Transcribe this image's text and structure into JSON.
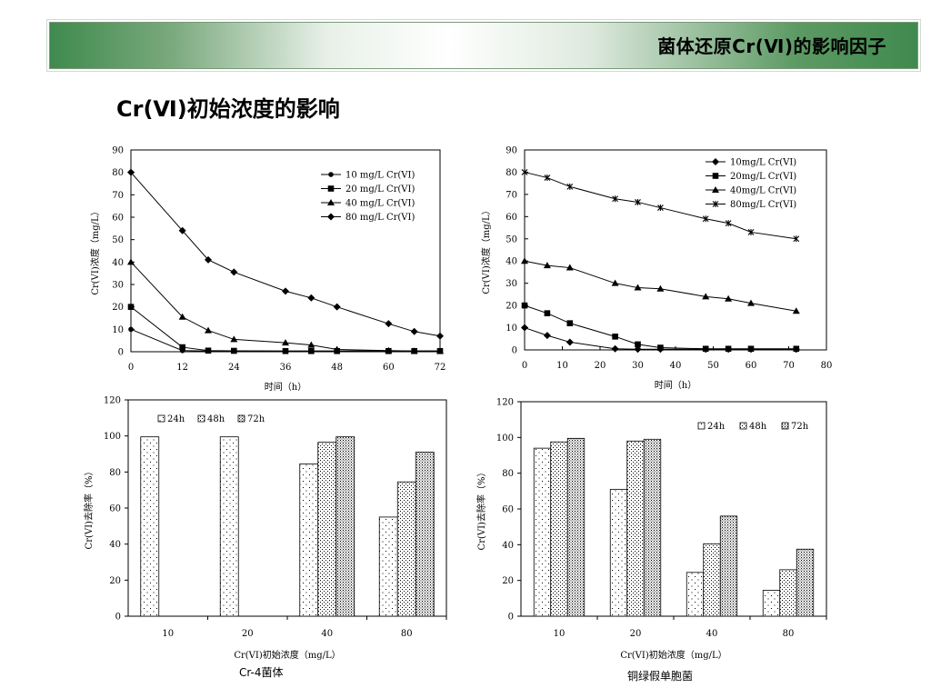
{
  "header": {
    "title": "菌体还原Cr(Ⅵ)的影响因子"
  },
  "section": {
    "title": "Cr(Ⅵ)初始浓度的影响"
  },
  "chart_data": [
    {
      "type": "line",
      "xlabel": "时间（h）",
      "ylabel": "Cr(VI)浓度（mg/L）",
      "xlim": [
        0,
        72
      ],
      "ylim": [
        0,
        90
      ],
      "xticks": [
        0,
        12,
        24,
        36,
        48,
        60,
        72
      ],
      "yticks": [
        0,
        10,
        20,
        30,
        40,
        50,
        60,
        70,
        80,
        90
      ],
      "legend_position": "top-right",
      "series": [
        {
          "name": "10 mg/L Cr(VI)",
          "marker": "circle",
          "x": [
            0,
            12,
            18,
            24,
            36,
            42,
            48,
            60,
            66,
            72
          ],
          "y": [
            10,
            0.5,
            0.3,
            0.3,
            0.3,
            0.3,
            0.3,
            0.3,
            0.3,
            0.3
          ]
        },
        {
          "name": "20 mg/L Cr(VI)",
          "marker": "square",
          "x": [
            0,
            12,
            18,
            24,
            36,
            42,
            48,
            60,
            66,
            72
          ],
          "y": [
            20,
            2,
            0.5,
            0.4,
            0.3,
            0.3,
            0.3,
            0.3,
            0.3,
            0.3
          ]
        },
        {
          "name": "40 mg/L Cr(VI)",
          "marker": "triangle",
          "x": [
            0,
            12,
            18,
            24,
            36,
            42,
            48,
            60,
            66,
            72
          ],
          "y": [
            40,
            15.5,
            9.5,
            5.5,
            4,
            3,
            1,
            0.5,
            0.3,
            0.3
          ]
        },
        {
          "name": "80 mg/L Cr(VI)",
          "marker": "diamond",
          "x": [
            0,
            12,
            18,
            24,
            36,
            42,
            48,
            60,
            66,
            72
          ],
          "y": [
            80,
            54,
            41,
            35.5,
            27,
            24,
            20,
            12.5,
            9,
            7
          ]
        }
      ]
    },
    {
      "type": "line",
      "xlabel": "时间（h）",
      "ylabel": "Cr(VI)浓度（mg/L）",
      "xlim": [
        0,
        80
      ],
      "ylim": [
        0,
        90
      ],
      "xticks": [
        0,
        10,
        20,
        30,
        40,
        50,
        60,
        70,
        80
      ],
      "yticks": [
        0,
        10,
        20,
        30,
        40,
        50,
        60,
        70,
        80,
        90
      ],
      "legend_position": "top-right",
      "series": [
        {
          "name": "10mg/L Cr(VI)",
          "marker": "diamond",
          "x": [
            0,
            6,
            12,
            24,
            30,
            36,
            48,
            54,
            60,
            72
          ],
          "y": [
            10,
            6.5,
            3.5,
            0.5,
            0.3,
            0.3,
            0.3,
            0.3,
            0.3,
            0.3
          ]
        },
        {
          "name": "20mg/L Cr(VI)",
          "marker": "square",
          "x": [
            0,
            6,
            12,
            24,
            30,
            36,
            48,
            54,
            60,
            72
          ],
          "y": [
            20,
            16.5,
            12,
            6,
            2.5,
            1,
            0.5,
            0.5,
            0.5,
            0.5
          ]
        },
        {
          "name": "40mg/L Cr(VI)",
          "marker": "triangle",
          "x": [
            0,
            6,
            12,
            24,
            30,
            36,
            48,
            54,
            60,
            72
          ],
          "y": [
            40,
            38,
            37,
            30,
            28,
            27.5,
            24,
            23,
            21,
            17.5
          ]
        },
        {
          "name": "80mg/L Cr(VI)",
          "marker": "x",
          "x": [
            0,
            6,
            12,
            24,
            30,
            36,
            48,
            54,
            60,
            72
          ],
          "y": [
            80,
            77.5,
            73.5,
            68,
            66.5,
            64,
            59,
            57,
            53,
            50
          ]
        }
      ]
    },
    {
      "type": "bar",
      "xlabel": "Cr(VI)初始浓度（mg/L）",
      "ylabel": "Cr(VI)去除率（%）",
      "ylim": [
        0,
        120
      ],
      "yticks": [
        0,
        20,
        40,
        60,
        80,
        100,
        120
      ],
      "categories": [
        "10",
        "20",
        "40",
        "80"
      ],
      "legend_position": "top-left",
      "series": [
        {
          "name": "24h",
          "pattern": "sparse-dots",
          "values": [
            99.5,
            99.5,
            84.5,
            55
          ]
        },
        {
          "name": "48h",
          "pattern": "medium-dots",
          "values": [
            0,
            0,
            96.5,
            74.5
          ]
        },
        {
          "name": "72h",
          "pattern": "dense-checks",
          "values": [
            0,
            0,
            99.5,
            91
          ]
        }
      ],
      "caption": "Cr-4菌体"
    },
    {
      "type": "bar",
      "xlabel": "Cr(VI)初始浓度（mg/L）",
      "ylabel": "Cr(VI)去除率（%）",
      "ylim": [
        0,
        120
      ],
      "yticks": [
        0,
        20,
        40,
        60,
        80,
        100,
        120
      ],
      "categories": [
        "10",
        "20",
        "40",
        "80"
      ],
      "legend_position": "top-right",
      "series": [
        {
          "name": "24h",
          "pattern": "sparse-dots",
          "values": [
            94,
            71,
            24.5,
            14.5
          ]
        },
        {
          "name": "48h",
          "pattern": "medium-dots",
          "values": [
            97.5,
            98,
            40.5,
            26
          ]
        },
        {
          "name": "72h",
          "pattern": "dense-checks",
          "values": [
            99.5,
            99,
            56,
            37.5
          ]
        }
      ],
      "caption": "铜绿假单胞菌"
    }
  ]
}
